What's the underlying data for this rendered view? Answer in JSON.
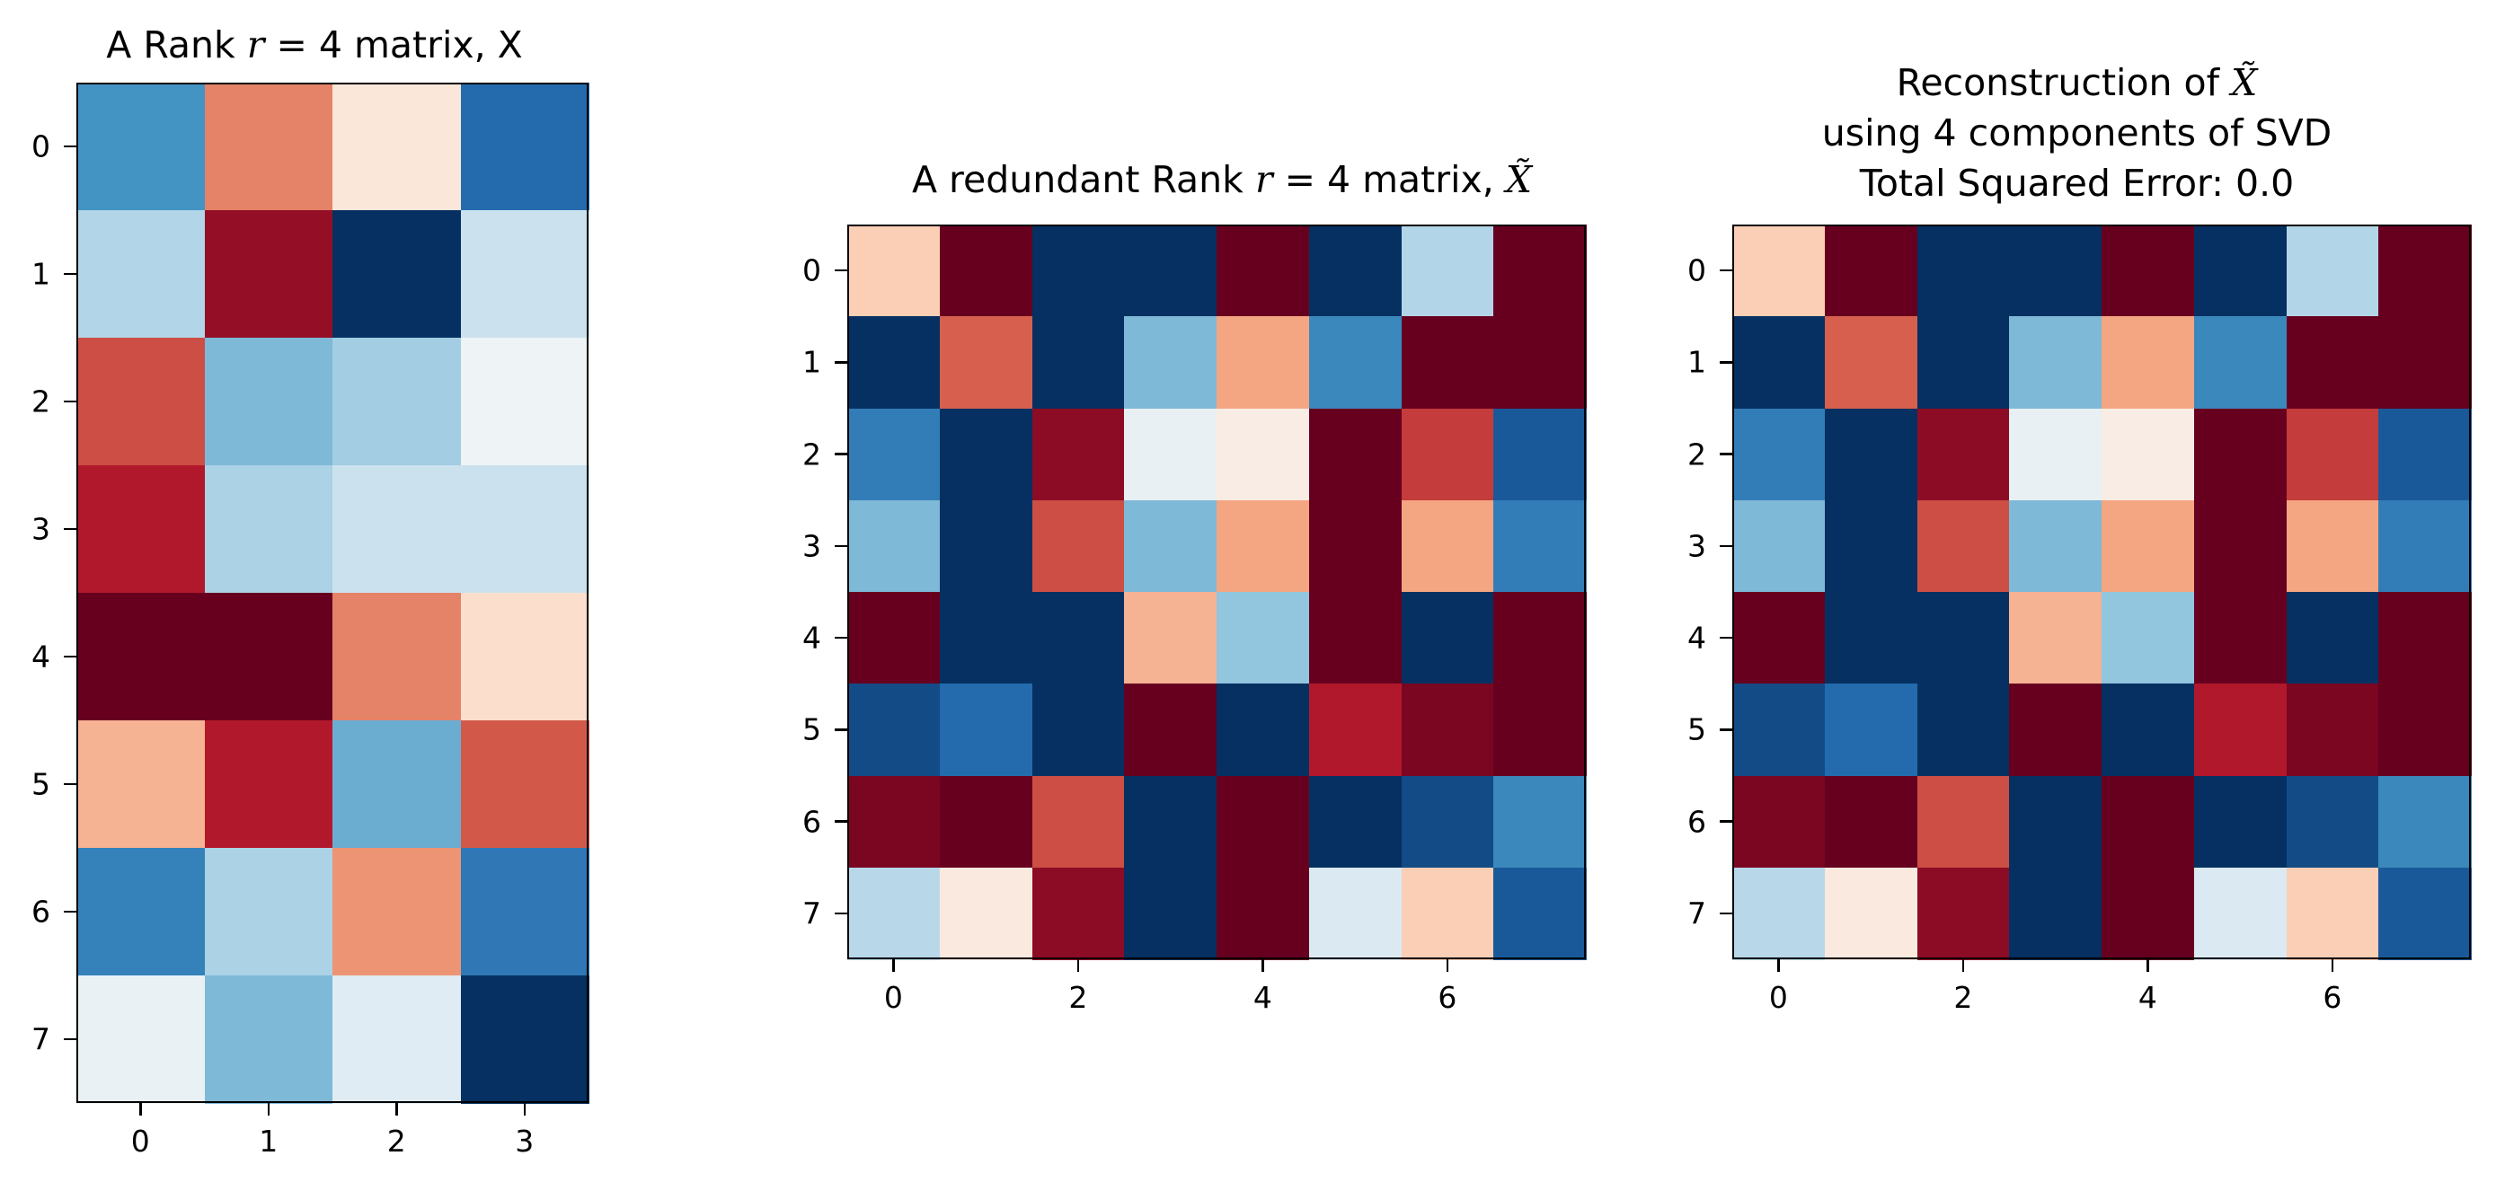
{
  "chart_data": [
    {
      "type": "heatmap",
      "title": "A Rank r = 4 matrix, X",
      "title_parts": [
        "A Rank ",
        "r",
        " = 4 matrix, X"
      ],
      "colormap": "RdBu_r",
      "x_ticks": [
        0,
        1,
        2,
        3
      ],
      "y_ticks": [
        0,
        1,
        2,
        3,
        4,
        5,
        6,
        7
      ],
      "vrange": [
        -1,
        1
      ],
      "values": [
        [
          -0.6,
          0.5,
          0.12,
          -0.78
        ],
        [
          -0.3,
          0.88,
          -1.0,
          -0.22
        ],
        [
          0.65,
          -0.45,
          -0.35,
          -0.05
        ],
        [
          0.8,
          -0.32,
          -0.22,
          -0.22
        ],
        [
          1.0,
          1.0,
          0.5,
          0.18
        ],
        [
          0.35,
          0.8,
          -0.5,
          0.62
        ],
        [
          -0.68,
          -0.32,
          0.45,
          -0.72
        ],
        [
          -0.07,
          -0.45,
          -0.12,
          -1.0
        ]
      ]
    },
    {
      "type": "heatmap",
      "title": "A redundant Rank r = 4 matrix, X̃",
      "title_parts": [
        "A redundant Rank ",
        "r",
        " = 4 matrix, ",
        "X̃"
      ],
      "colormap": "RdBu_r",
      "x_ticks": [
        0,
        2,
        4,
        6
      ],
      "y_ticks": [
        0,
        1,
        2,
        3,
        4,
        5,
        6,
        7
      ],
      "vrange": [
        -1,
        1
      ],
      "values": [
        [
          0.25,
          1.0,
          -1.0,
          -1.0,
          1.0,
          -1.0,
          -0.3,
          1.0
        ],
        [
          -1.0,
          0.6,
          -1.0,
          -0.45,
          0.4,
          -0.65,
          1.0,
          1.0
        ],
        [
          -0.7,
          -1.0,
          0.9,
          -0.08,
          0.08,
          1.0,
          0.7,
          -0.85
        ],
        [
          -0.45,
          -1.0,
          0.65,
          -0.45,
          0.4,
          1.0,
          0.4,
          -0.7
        ],
        [
          1.0,
          -1.0,
          -1.0,
          0.35,
          -0.4,
          1.0,
          -1.0,
          1.0
        ],
        [
          -0.9,
          -0.78,
          -1.0,
          1.0,
          -1.0,
          0.8,
          0.95,
          1.0
        ],
        [
          0.95,
          1.0,
          0.65,
          -1.0,
          1.0,
          -1.0,
          -0.9,
          -0.65
        ],
        [
          -0.28,
          0.1,
          0.9,
          -1.0,
          1.0,
          -0.15,
          0.25,
          -0.85
        ]
      ]
    },
    {
      "type": "heatmap",
      "title": "Reconstruction of X̃ using 4 components of SVD Total Squared Error: 0.0",
      "title_lines": [
        [
          "Reconstruction of ",
          "X̃"
        ],
        [
          "using 4 components of SVD"
        ],
        [
          "Total Squared Error: 0.0"
        ]
      ],
      "colormap": "RdBu_r",
      "x_ticks": [
        0,
        2,
        4,
        6
      ],
      "y_ticks": [
        0,
        1,
        2,
        3,
        4,
        5,
        6,
        7
      ],
      "vrange": [
        -1,
        1
      ],
      "values": [
        [
          0.25,
          1.0,
          -1.0,
          -1.0,
          1.0,
          -1.0,
          -0.3,
          1.0
        ],
        [
          -1.0,
          0.6,
          -1.0,
          -0.45,
          0.4,
          -0.65,
          1.0,
          1.0
        ],
        [
          -0.7,
          -1.0,
          0.9,
          -0.08,
          0.08,
          1.0,
          0.7,
          -0.85
        ],
        [
          -0.45,
          -1.0,
          0.65,
          -0.45,
          0.4,
          1.0,
          0.4,
          -0.7
        ],
        [
          1.0,
          -1.0,
          -1.0,
          0.35,
          -0.4,
          1.0,
          -1.0,
          1.0
        ],
        [
          -0.9,
          -0.78,
          -1.0,
          1.0,
          -1.0,
          0.8,
          0.95,
          1.0
        ],
        [
          0.95,
          1.0,
          0.65,
          -1.0,
          1.0,
          -1.0,
          -0.9,
          -0.65
        ],
        [
          -0.28,
          0.1,
          0.9,
          -1.0,
          1.0,
          -0.15,
          0.25,
          -0.85
        ]
      ]
    }
  ]
}
